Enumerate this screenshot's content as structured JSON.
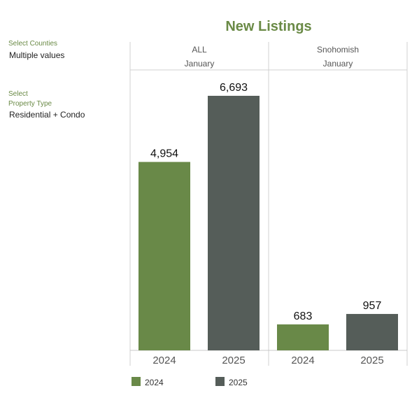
{
  "filters": {
    "counties": {
      "label": "Select Counties",
      "value": "Multiple values"
    },
    "property_type": {
      "label_line1": "Select",
      "label_line2": "Property Type",
      "value": "Residential + Condo"
    }
  },
  "colors": {
    "y2024": "#698948",
    "y2025": "#555d59",
    "accent": "#6a8a46"
  },
  "chart_data": {
    "type": "bar",
    "title": "New Listings",
    "panels": [
      {
        "header": "ALL",
        "subheader": "January",
        "categories": [
          "2024",
          "2025"
        ],
        "values": [
          4954,
          6693
        ],
        "labels": [
          "4,954",
          "6,693"
        ]
      },
      {
        "header": "Snohomish",
        "subheader": "January",
        "categories": [
          "2024",
          "2025"
        ],
        "values": [
          683,
          957
        ],
        "labels": [
          "683",
          "957"
        ]
      }
    ],
    "ylim": [
      0,
      7000
    ],
    "legend": {
      "placement": "bottom",
      "entries": [
        "2024",
        "2025"
      ]
    }
  }
}
